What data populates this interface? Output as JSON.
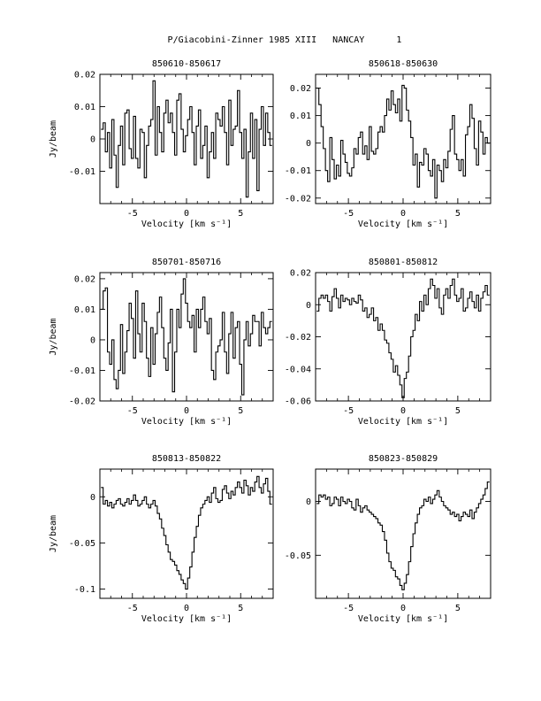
{
  "figure_title": "P/Giacobini-Zinner 1985 XIII   NANCAY      1",
  "chart_data": [
    {
      "type": "line",
      "title": "850610-850617",
      "xlabel": "Velocity [km s⁻¹]",
      "ylabel": "Jy/beam",
      "xlim": [
        -8,
        8
      ],
      "ylim": [
        -0.02,
        0.02
      ],
      "xticks": [
        -5,
        0,
        5
      ],
      "yticks": [
        -0.01,
        0,
        0.01,
        0.02
      ],
      "ytick_labels": [
        "-0.01",
        "0",
        "0.01",
        "0.02"
      ],
      "x": [
        -7.8,
        -7.6,
        -7.4,
        -7.2,
        -7.0,
        -6.8,
        -6.6,
        -6.4,
        -6.2,
        -6.0,
        -5.8,
        -5.6,
        -5.4,
        -5.2,
        -5.0,
        -4.8,
        -4.6,
        -4.4,
        -4.2,
        -4.0,
        -3.8,
        -3.6,
        -3.4,
        -3.2,
        -3.0,
        -2.8,
        -2.6,
        -2.4,
        -2.2,
        -2.0,
        -1.8,
        -1.6,
        -1.4,
        -1.2,
        -1.0,
        -0.8,
        -0.6,
        -0.4,
        -0.2,
        0.0,
        0.2,
        0.4,
        0.6,
        0.8,
        1.0,
        1.2,
        1.4,
        1.6,
        1.8,
        2.0,
        2.2,
        2.4,
        2.6,
        2.8,
        3.0,
        3.2,
        3.4,
        3.6,
        3.8,
        4.0,
        4.2,
        4.4,
        4.6,
        4.8,
        5.0,
        5.2,
        5.4,
        5.6,
        5.8,
        6.0,
        6.2,
        6.4,
        6.6,
        6.8,
        7.0,
        7.2,
        7.4,
        7.6,
        7.8
      ],
      "y": [
        0.003,
        0.005,
        -0.004,
        0.002,
        -0.009,
        0.006,
        -0.005,
        -0.015,
        -0.002,
        0.004,
        -0.008,
        0.008,
        0.009,
        -0.003,
        -0.006,
        0.007,
        -0.006,
        -0.009,
        0.003,
        0.002,
        -0.012,
        -0.002,
        0.004,
        0.006,
        0.018,
        -0.005,
        0.01,
        0.002,
        -0.004,
        0.008,
        0.012,
        0.005,
        0.008,
        0.002,
        -0.005,
        0.012,
        0.014,
        0.003,
        -0.004,
        0.001,
        0.006,
        0.01,
        0.002,
        -0.008,
        0.004,
        0.009,
        -0.006,
        -0.002,
        0.004,
        -0.012,
        -0.004,
        0.002,
        -0.006,
        0.008,
        0.006,
        0.004,
        0.01,
        0.002,
        -0.008,
        0.012,
        -0.002,
        0.003,
        0.004,
        0.015,
        0.002,
        -0.006,
        0.003,
        -0.018,
        -0.004,
        0.008,
        -0.006,
        0.006,
        -0.016,
        0.003,
        0.01,
        -0.002,
        0.008,
        0.002,
        -0.002
      ]
    },
    {
      "type": "line",
      "title": "850618-850630",
      "xlabel": "Velocity [km s⁻¹]",
      "ylabel": "",
      "xlim": [
        -8,
        8
      ],
      "ylim": [
        -0.022,
        0.025
      ],
      "xticks": [
        -5,
        0,
        5
      ],
      "yticks": [
        -0.02,
        -0.01,
        0,
        0.01,
        0.02
      ],
      "ytick_labels": [
        "-0.02",
        "-0.01",
        "0",
        "0.01",
        "0.02"
      ],
      "x": [
        -7.8,
        -7.6,
        -7.4,
        -7.2,
        -7.0,
        -6.8,
        -6.6,
        -6.4,
        -6.2,
        -6.0,
        -5.8,
        -5.6,
        -5.4,
        -5.2,
        -5.0,
        -4.8,
        -4.6,
        -4.4,
        -4.2,
        -4.0,
        -3.8,
        -3.6,
        -3.4,
        -3.2,
        -3.0,
        -2.8,
        -2.6,
        -2.4,
        -2.2,
        -2.0,
        -1.8,
        -1.6,
        -1.4,
        -1.2,
        -1.0,
        -0.8,
        -0.6,
        -0.4,
        -0.2,
        0.0,
        0.2,
        0.4,
        0.6,
        0.8,
        1.0,
        1.2,
        1.4,
        1.6,
        1.8,
        2.0,
        2.2,
        2.4,
        2.6,
        2.8,
        3.0,
        3.2,
        3.4,
        3.6,
        3.8,
        4.0,
        4.2,
        4.4,
        4.6,
        4.8,
        5.0,
        5.2,
        5.4,
        5.6,
        5.8,
        6.0,
        6.2,
        6.4,
        6.6,
        6.8,
        7.0,
        7.2,
        7.4,
        7.6,
        7.8
      ],
      "y": [
        0.02,
        0.014,
        0.006,
        -0.002,
        -0.01,
        -0.014,
        0.002,
        -0.006,
        -0.013,
        -0.008,
        -0.012,
        0.001,
        -0.004,
        -0.007,
        -0.011,
        -0.012,
        -0.009,
        -0.002,
        -0.004,
        0.002,
        0.004,
        -0.004,
        -0.001,
        -0.006,
        0.006,
        -0.003,
        -0.004,
        -0.002,
        0.004,
        0.006,
        0.004,
        0.01,
        0.016,
        0.012,
        0.019,
        0.014,
        0.011,
        0.016,
        0.008,
        0.021,
        0.02,
        0.012,
        0.008,
        0.002,
        -0.008,
        -0.004,
        -0.016,
        -0.007,
        -0.008,
        -0.002,
        -0.004,
        -0.01,
        -0.012,
        -0.006,
        -0.02,
        -0.008,
        -0.01,
        -0.014,
        -0.006,
        -0.009,
        -0.003,
        0.005,
        0.01,
        -0.004,
        -0.006,
        -0.01,
        -0.006,
        -0.012,
        0.003,
        0.006,
        0.014,
        0.009,
        -0.002,
        -0.008,
        0.008,
        0.004,
        -0.004,
        0.002,
        0.0
      ]
    },
    {
      "type": "line",
      "title": "850701-850716",
      "xlabel": "Velocity [km s⁻¹]",
      "ylabel": "Jy/beam",
      "xlim": [
        -8,
        8
      ],
      "ylim": [
        -0.02,
        0.022
      ],
      "xticks": [
        -5,
        0,
        5
      ],
      "yticks": [
        -0.02,
        -0.01,
        0,
        0.01,
        0.02
      ],
      "ytick_labels": [
        "-0.02",
        "-0.01",
        "0",
        "0.01",
        "0.02"
      ],
      "x": [
        -7.8,
        -7.6,
        -7.4,
        -7.2,
        -7.0,
        -6.8,
        -6.6,
        -6.4,
        -6.2,
        -6.0,
        -5.8,
        -5.6,
        -5.4,
        -5.2,
        -5.0,
        -4.8,
        -4.6,
        -4.4,
        -4.2,
        -4.0,
        -3.8,
        -3.6,
        -3.4,
        -3.2,
        -3.0,
        -2.8,
        -2.6,
        -2.4,
        -2.2,
        -2.0,
        -1.8,
        -1.6,
        -1.4,
        -1.2,
        -1.0,
        -0.8,
        -0.6,
        -0.4,
        -0.2,
        0.0,
        0.2,
        0.4,
        0.6,
        0.8,
        1.0,
        1.2,
        1.4,
        1.6,
        1.8,
        2.0,
        2.2,
        2.4,
        2.6,
        2.8,
        3.0,
        3.2,
        3.4,
        3.6,
        3.8,
        4.0,
        4.2,
        4.4,
        4.6,
        4.8,
        5.0,
        5.2,
        5.4,
        5.6,
        5.8,
        6.0,
        6.2,
        6.4,
        6.6,
        6.8,
        7.0,
        7.2,
        7.4,
        7.6,
        7.8
      ],
      "y": [
        0.01,
        0.016,
        0.017,
        -0.004,
        -0.008,
        0.0,
        -0.013,
        -0.016,
        -0.01,
        0.005,
        -0.011,
        -0.004,
        0.003,
        0.012,
        0.007,
        -0.006,
        0.016,
        0.002,
        -0.004,
        0.012,
        0.006,
        -0.006,
        -0.012,
        0.004,
        -0.008,
        0.002,
        0.009,
        0.014,
        0.004,
        -0.006,
        -0.01,
        -0.001,
        0.01,
        -0.017,
        -0.004,
        0.01,
        0.004,
        0.015,
        0.02,
        0.012,
        0.006,
        0.004,
        0.008,
        -0.004,
        0.01,
        0.004,
        0.01,
        0.014,
        0.006,
        0.002,
        0.007,
        -0.01,
        -0.013,
        -0.004,
        -0.002,
        0.0,
        0.009,
        -0.004,
        -0.011,
        0.002,
        0.009,
        -0.006,
        0.004,
        0.006,
        -0.008,
        -0.018,
        0.0,
        0.006,
        -0.002,
        0.002,
        0.008,
        0.006,
        0.006,
        -0.002,
        0.009,
        0.004,
        0.002,
        0.004,
        0.006
      ]
    },
    {
      "type": "line",
      "title": "850801-850812",
      "xlabel": "Velocity [km s⁻¹]",
      "ylabel": "",
      "xlim": [
        -8,
        8
      ],
      "ylim": [
        -0.06,
        0.02
      ],
      "xticks": [
        -5,
        0,
        5
      ],
      "yticks": [
        -0.06,
        -0.04,
        -0.02,
        0,
        0.02
      ],
      "ytick_labels": [
        "-0.06",
        "-0.04",
        "-0.02",
        "0",
        "0.02"
      ],
      "x": [
        -7.8,
        -7.6,
        -7.4,
        -7.2,
        -7.0,
        -6.8,
        -6.6,
        -6.4,
        -6.2,
        -6.0,
        -5.8,
        -5.6,
        -5.4,
        -5.2,
        -5.0,
        -4.8,
        -4.6,
        -4.4,
        -4.2,
        -4.0,
        -3.8,
        -3.6,
        -3.4,
        -3.2,
        -3.0,
        -2.8,
        -2.6,
        -2.4,
        -2.2,
        -2.0,
        -1.8,
        -1.6,
        -1.4,
        -1.2,
        -1.0,
        -0.8,
        -0.6,
        -0.4,
        -0.2,
        0.0,
        0.2,
        0.4,
        0.6,
        0.8,
        1.0,
        1.2,
        1.4,
        1.6,
        1.8,
        2.0,
        2.2,
        2.4,
        2.6,
        2.8,
        3.0,
        3.2,
        3.4,
        3.6,
        3.8,
        4.0,
        4.2,
        4.4,
        4.6,
        4.8,
        5.0,
        5.2,
        5.4,
        5.6,
        5.8,
        6.0,
        6.2,
        6.4,
        6.6,
        6.8,
        7.0,
        7.2,
        7.4,
        7.6,
        7.8
      ],
      "y": [
        -0.004,
        0.004,
        0.006,
        0.004,
        0.006,
        0.002,
        -0.004,
        0.005,
        0.01,
        0.004,
        -0.002,
        0.006,
        0.002,
        0.004,
        0.003,
        0.0,
        0.004,
        0.002,
        0.001,
        0.006,
        0.003,
        -0.004,
        -0.002,
        -0.008,
        -0.006,
        -0.002,
        -0.01,
        -0.008,
        -0.016,
        -0.012,
        -0.016,
        -0.022,
        -0.024,
        -0.03,
        -0.034,
        -0.042,
        -0.038,
        -0.044,
        -0.05,
        -0.058,
        -0.046,
        -0.042,
        -0.032,
        -0.02,
        -0.016,
        -0.006,
        -0.01,
        0.002,
        -0.004,
        0.006,
        0.0,
        0.01,
        0.016,
        0.012,
        0.004,
        0.01,
        -0.002,
        -0.006,
        0.006,
        0.01,
        0.004,
        0.012,
        0.016,
        0.006,
        0.002,
        0.004,
        0.01,
        -0.004,
        -0.002,
        0.004,
        0.008,
        0.002,
        -0.002,
        0.006,
        -0.004,
        0.004,
        0.008,
        0.012,
        0.006
      ]
    },
    {
      "type": "line",
      "title": "850813-850822",
      "xlabel": "Velocity [km s⁻¹]",
      "ylabel": "Jy/beam",
      "xlim": [
        -8,
        8
      ],
      "ylim": [
        -0.11,
        0.03
      ],
      "xticks": [
        -5,
        0,
        5
      ],
      "yticks": [
        -0.1,
        -0.05,
        0
      ],
      "ytick_labels": [
        "-0.1",
        "-0.05",
        "0"
      ],
      "x": [
        -7.8,
        -7.6,
        -7.4,
        -7.2,
        -7.0,
        -6.8,
        -6.6,
        -6.4,
        -6.2,
        -6.0,
        -5.8,
        -5.6,
        -5.4,
        -5.2,
        -5.0,
        -4.8,
        -4.6,
        -4.4,
        -4.2,
        -4.0,
        -3.8,
        -3.6,
        -3.4,
        -3.2,
        -3.0,
        -2.8,
        -2.6,
        -2.4,
        -2.2,
        -2.0,
        -1.8,
        -1.6,
        -1.4,
        -1.2,
        -1.0,
        -0.8,
        -0.6,
        -0.4,
        -0.2,
        0.0,
        0.2,
        0.4,
        0.6,
        0.8,
        1.0,
        1.2,
        1.4,
        1.6,
        1.8,
        2.0,
        2.2,
        2.4,
        2.6,
        2.8,
        3.0,
        3.2,
        3.4,
        3.6,
        3.8,
        4.0,
        4.2,
        4.4,
        4.6,
        4.8,
        5.0,
        5.2,
        5.4,
        5.6,
        5.8,
        6.0,
        6.2,
        6.4,
        6.6,
        6.8,
        7.0,
        7.2,
        7.4,
        7.6,
        7.8
      ],
      "y": [
        0.01,
        -0.008,
        -0.004,
        -0.01,
        -0.006,
        -0.012,
        -0.008,
        -0.004,
        -0.002,
        -0.008,
        -0.01,
        -0.006,
        -0.002,
        -0.008,
        -0.004,
        0.002,
        -0.004,
        -0.01,
        -0.008,
        -0.004,
        0.0,
        -0.008,
        -0.012,
        -0.008,
        -0.004,
        -0.01,
        -0.018,
        -0.024,
        -0.034,
        -0.042,
        -0.052,
        -0.06,
        -0.068,
        -0.07,
        -0.074,
        -0.08,
        -0.084,
        -0.09,
        -0.094,
        -0.1,
        -0.088,
        -0.076,
        -0.06,
        -0.044,
        -0.032,
        -0.02,
        -0.012,
        -0.008,
        -0.004,
        0.0,
        -0.006,
        0.004,
        0.01,
        -0.002,
        -0.006,
        -0.004,
        0.008,
        0.012,
        0.004,
        -0.002,
        0.006,
        0.002,
        0.01,
        0.016,
        0.01,
        0.004,
        0.018,
        0.012,
        0.002,
        0.01,
        0.006,
        0.016,
        0.022,
        0.01,
        0.004,
        0.014,
        0.02,
        0.006,
        -0.008
      ]
    },
    {
      "type": "line",
      "title": "850823-850829",
      "xlabel": "Velocity [km s⁻¹]",
      "ylabel": "",
      "xlim": [
        -8,
        8
      ],
      "ylim": [
        -0.09,
        0.03
      ],
      "xticks": [
        -5,
        0,
        5
      ],
      "yticks": [
        -0.05,
        0
      ],
      "ytick_labels": [
        "-0.05",
        "0"
      ],
      "x": [
        -7.8,
        -7.6,
        -7.4,
        -7.2,
        -7.0,
        -6.8,
        -6.6,
        -6.4,
        -6.2,
        -6.0,
        -5.8,
        -5.6,
        -5.4,
        -5.2,
        -5.0,
        -4.8,
        -4.6,
        -4.4,
        -4.2,
        -4.0,
        -3.8,
        -3.6,
        -3.4,
        -3.2,
        -3.0,
        -2.8,
        -2.6,
        -2.4,
        -2.2,
        -2.0,
        -1.8,
        -1.6,
        -1.4,
        -1.2,
        -1.0,
        -0.8,
        -0.6,
        -0.4,
        -0.2,
        0.0,
        0.2,
        0.4,
        0.6,
        0.8,
        1.0,
        1.2,
        1.4,
        1.6,
        1.8,
        2.0,
        2.2,
        2.4,
        2.6,
        2.8,
        3.0,
        3.2,
        3.4,
        3.6,
        3.8,
        4.0,
        4.2,
        4.4,
        4.6,
        4.8,
        5.0,
        5.2,
        5.4,
        5.6,
        5.8,
        6.0,
        6.2,
        6.4,
        6.6,
        6.8,
        7.0,
        7.2,
        7.4,
        7.6,
        7.8
      ],
      "y": [
        -0.002,
        0.006,
        0.004,
        0.006,
        0.002,
        0.004,
        -0.004,
        -0.002,
        0.004,
        0.002,
        -0.004,
        0.004,
        0.0,
        -0.002,
        0.002,
        0.0,
        -0.006,
        -0.008,
        0.002,
        -0.004,
        -0.01,
        -0.006,
        -0.004,
        -0.008,
        -0.01,
        -0.012,
        -0.014,
        -0.016,
        -0.02,
        -0.022,
        -0.028,
        -0.036,
        -0.048,
        -0.056,
        -0.062,
        -0.064,
        -0.07,
        -0.072,
        -0.078,
        -0.082,
        -0.076,
        -0.068,
        -0.056,
        -0.042,
        -0.03,
        -0.02,
        -0.012,
        -0.006,
        -0.004,
        0.002,
        0.0,
        0.004,
        -0.002,
        0.002,
        0.006,
        0.01,
        0.004,
        0.0,
        -0.004,
        -0.006,
        -0.008,
        -0.012,
        -0.01,
        -0.014,
        -0.012,
        -0.018,
        -0.014,
        -0.01,
        -0.012,
        -0.014,
        -0.008,
        -0.016,
        -0.01,
        -0.006,
        -0.002,
        0.002,
        0.006,
        0.012,
        0.018
      ]
    }
  ]
}
